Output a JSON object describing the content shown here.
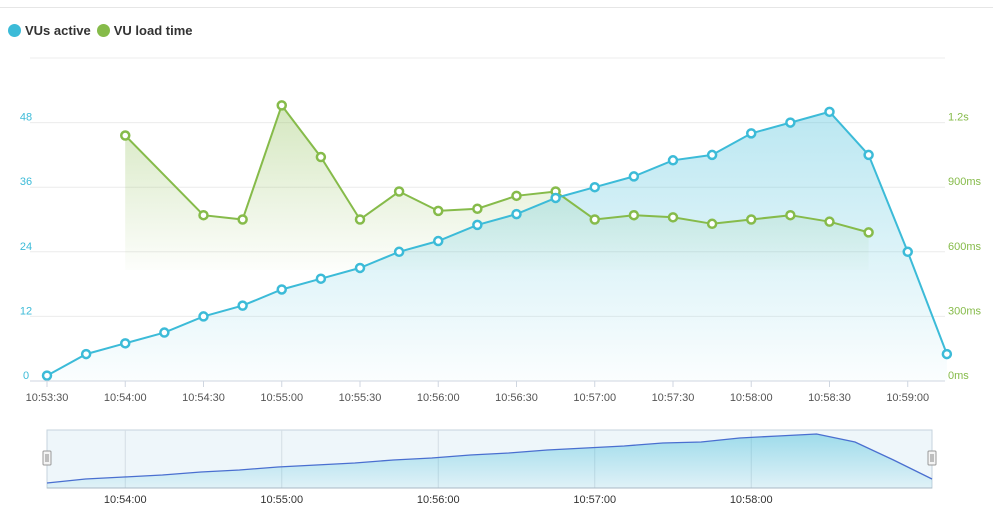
{
  "legend": [
    {
      "label": "VUs active",
      "color": "#3cbbd8"
    },
    {
      "label": "VU load time",
      "color": "#86bb4a"
    }
  ],
  "chart_data": {
    "type": "line",
    "grid": true,
    "legend_position": "top-left",
    "x_ticks": [
      "10:53:30",
      "10:54:00",
      "10:54:30",
      "10:55:00",
      "10:55:30",
      "10:56:00",
      "10:56:30",
      "10:57:00",
      "10:57:30",
      "10:58:00",
      "10:58:30",
      "10:59:00"
    ],
    "x_tick_seconds": [
      0,
      30,
      60,
      90,
      120,
      150,
      180,
      210,
      240,
      270,
      300,
      330
    ],
    "y_left": {
      "ticks": [
        "0",
        "12",
        "24",
        "36",
        "48"
      ],
      "tick_values": [
        0,
        12,
        24,
        36,
        48
      ],
      "ylim": [
        0,
        60
      ],
      "color": "#3cbbd8"
    },
    "y_right": {
      "ticks": [
        "0ms",
        "300ms",
        "600ms",
        "900ms",
        "1.2s"
      ],
      "tick_values": [
        0,
        300,
        600,
        900,
        1200
      ],
      "ylim": [
        0,
        1500
      ],
      "color": "#86bb4a"
    },
    "series": [
      {
        "name": "VUs active",
        "axis": "left",
        "color": "#3cbbd8",
        "x_seconds": [
          0,
          15,
          30,
          45,
          60,
          75,
          90,
          105,
          120,
          135,
          150,
          165,
          180,
          195,
          210,
          225,
          240,
          255,
          270,
          285,
          300,
          315,
          330,
          345
        ],
        "values": [
          1,
          5,
          7,
          9,
          12,
          14,
          17,
          19,
          21,
          24,
          26,
          29,
          31,
          34,
          36,
          38,
          41,
          42,
          46,
          48,
          50,
          42,
          24,
          5
        ]
      },
      {
        "name": "VU load time",
        "axis": "right",
        "color": "#86bb4a",
        "x_seconds": [
          30,
          60,
          75,
          90,
          105,
          120,
          135,
          150,
          165,
          180,
          195,
          210,
          225,
          240,
          255,
          270,
          285,
          300,
          315
        ],
        "values": [
          1140,
          770,
          750,
          1280,
          1040,
          750,
          880,
          790,
          800,
          860,
          880,
          750,
          770,
          760,
          730,
          750,
          770,
          740,
          690
        ]
      }
    ],
    "navigator": {
      "x_ticks": [
        "10:54:00",
        "10:55:00",
        "10:56:00",
        "10:57:00",
        "10:58:00"
      ],
      "x_tick_seconds": [
        30,
        90,
        150,
        210,
        270
      ]
    }
  }
}
